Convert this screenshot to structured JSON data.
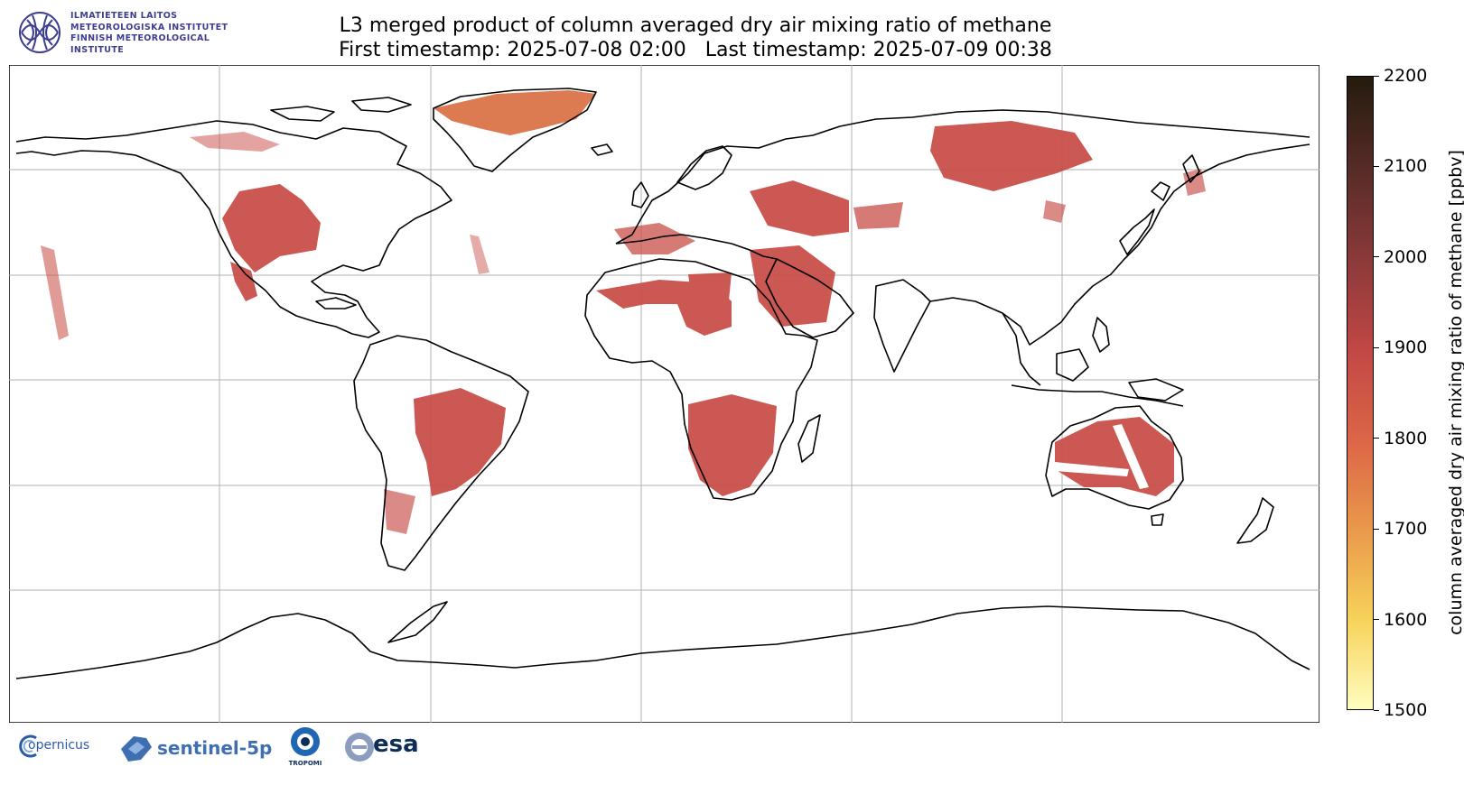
{
  "header": {
    "institute_lines": [
      "ILMATIETEEN LAITOS",
      "METEOROLOGISKA INSTITUTET",
      "FINNISH METEOROLOGICAL INSTITUTE"
    ],
    "title": "L3 merged product of column averaged dry air mixing ratio of methane",
    "subtitle": "First timestamp: 2025-07-08 02:00   Last timestamp: 2025-07-09 00:38"
  },
  "colorbar": {
    "label": "column averaged dry air mixing ratio of methane [ppbv]",
    "min": 1500,
    "max": 2200,
    "ticks": [
      "1500",
      "1600",
      "1700",
      "1800",
      "1900",
      "2000",
      "2100",
      "2200"
    ],
    "colors": [
      "#fffdc0",
      "#f7d35b",
      "#ea9a4b",
      "#dc6747",
      "#c34945",
      "#8f3a3b",
      "#582c28",
      "#241b0e"
    ]
  },
  "map": {
    "projection": "plate-carree",
    "grid": true,
    "data_color": "#c9504a",
    "greenland_color": "#dc7a52"
  },
  "footer": {
    "logos": [
      "opernicus",
      "sentinel-5p",
      "TROPOMI",
      "esa"
    ]
  }
}
